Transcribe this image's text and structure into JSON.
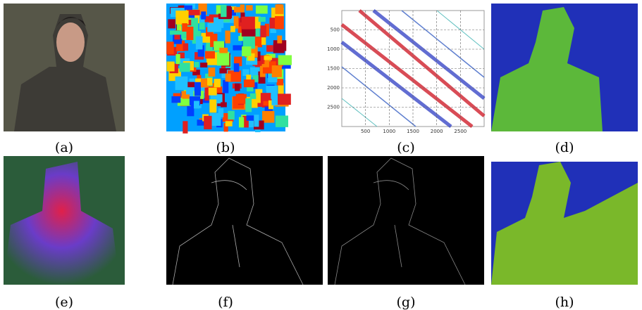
{
  "figure": {
    "panels": [
      {
        "caption": "(a)"
      },
      {
        "caption": "(b)"
      },
      {
        "caption": "(c)"
      },
      {
        "caption": "(d)"
      },
      {
        "caption": "(e)"
      },
      {
        "caption": "(f)"
      },
      {
        "caption": "(g)"
      },
      {
        "caption": "(h)"
      }
    ],
    "panel_c": {
      "xlim": [
        0,
        3000
      ],
      "ylim": [
        0,
        3000
      ],
      "xticks": [
        500,
        1000,
        1500,
        2000,
        2500
      ],
      "yticks": [
        500,
        1000,
        1500,
        2000,
        2500
      ]
    }
  }
}
